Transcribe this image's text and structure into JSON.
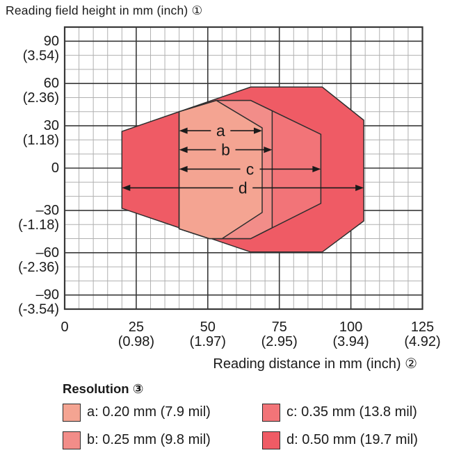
{
  "chart_data": {
    "type": "area",
    "title": "Reading field height in mm (inch) ①",
    "xlabel": "Reading distance in mm (inch) ②",
    "grid": true,
    "x_axis": {
      "unit": "mm (inch)",
      "range": [
        0,
        125
      ],
      "minor_step_mm": 5,
      "major_step_mm": 25,
      "ticks": [
        {
          "v": 0,
          "mm": "0",
          "inch": ""
        },
        {
          "v": 25,
          "mm": "25",
          "inch": "(0.98)"
        },
        {
          "v": 50,
          "mm": "50",
          "inch": "(1.97)"
        },
        {
          "v": 75,
          "mm": "75",
          "inch": "(2.95)"
        },
        {
          "v": 100,
          "mm": "100",
          "inch": "(3.94)"
        },
        {
          "v": 125,
          "mm": "125",
          "inch": "(4.92)"
        }
      ]
    },
    "y_axis": {
      "unit": "mm (inch)",
      "range": [
        -100,
        100
      ],
      "minor_step_mm": 10,
      "major_step_mm": 30,
      "ticks": [
        {
          "v": 90,
          "mm": "90",
          "inch": "(3.54)"
        },
        {
          "v": 60,
          "mm": "60",
          "inch": "(2.36)"
        },
        {
          "v": 30,
          "mm": "30",
          "inch": "(1.18)"
        },
        {
          "v": 0,
          "mm": "0",
          "inch": ""
        },
        {
          "v": -30,
          "mm": "–30",
          "inch": "(-1.18)"
        },
        {
          "v": -60,
          "mm": "–60",
          "inch": "(-2.36)"
        },
        {
          "v": -90,
          "mm": "–90",
          "inch": "(-3.54)"
        }
      ]
    },
    "series": [
      {
        "id": "d",
        "resolution": "0.50 mm (19.7 mil)",
        "color": "#EF5B65",
        "vertices_mm": [
          [
            20,
            26
          ],
          [
            65,
            57.5
          ],
          [
            90,
            57.5
          ],
          [
            104.5,
            34
          ],
          [
            104.5,
            -37.5
          ],
          [
            90,
            -59.5
          ],
          [
            65,
            -59.5
          ],
          [
            20,
            -28.5
          ]
        ]
      },
      {
        "id": "c",
        "resolution": "0.35 mm (13.8 mil)",
        "color": "#F27478",
        "vertices_mm": [
          [
            40,
            40
          ],
          [
            53,
            48
          ],
          [
            65,
            48
          ],
          [
            89.5,
            24
          ],
          [
            89.5,
            -25
          ],
          [
            65,
            -50
          ],
          [
            50.5,
            -50
          ],
          [
            40,
            -43
          ]
        ]
      },
      {
        "id": "b",
        "resolution": "0.25 mm (9.8 mil)",
        "color": "#F28D89",
        "vertices_mm": [
          [
            40,
            40
          ],
          [
            53,
            48
          ],
          [
            65,
            48
          ],
          [
            72.5,
            40.6
          ],
          [
            72.5,
            -42.3
          ],
          [
            65,
            -50
          ],
          [
            50.5,
            -50
          ],
          [
            40,
            -43
          ]
        ]
      },
      {
        "id": "a",
        "resolution": "0.20 mm (7.9 mil)",
        "color": "#F4A492",
        "vertices_mm": [
          [
            40,
            40
          ],
          [
            53,
            48
          ],
          [
            69,
            28.5
          ],
          [
            69,
            -31.5
          ],
          [
            55,
            -50
          ],
          [
            50.5,
            -50
          ],
          [
            40,
            -43
          ]
        ]
      }
    ],
    "arrows": [
      {
        "label": "a",
        "y_mm": 26.5,
        "x1_mm": 20,
        "x2_mm": 69,
        "from_mm": 40
      },
      {
        "label": "b",
        "y_mm": 13,
        "x1_mm": 20,
        "x2_mm": 72.5,
        "from_mm": 40
      },
      {
        "label": "c",
        "y_mm": -0.7,
        "x1_mm": 20,
        "x2_mm": 89.5,
        "from_mm": 40
      },
      {
        "label": "d",
        "y_mm": -14,
        "x1_mm": 20,
        "x2_mm": 104.5,
        "from_mm": 20
      }
    ]
  },
  "legend": {
    "title": "Resolution ③",
    "items": [
      {
        "id": "a",
        "color": "#F4A492",
        "label": "a: 0.20 mm (7.9 mil)"
      },
      {
        "id": "b",
        "color": "#F28D89",
        "label": "b: 0.25 mm (9.8 mil)"
      },
      {
        "id": "c",
        "color": "#F27478",
        "label": "c: 0.35 mm (13.8 mil)"
      },
      {
        "id": "d",
        "color": "#EF5B65",
        "label": "d: 0.50 mm (19.7 mil)"
      }
    ]
  },
  "style": {
    "grid_minor_color": "#b0b0b0",
    "grid_major_color": "#383838",
    "outline_color": "#2e2e2e",
    "text_color": "#1a1a1a"
  }
}
